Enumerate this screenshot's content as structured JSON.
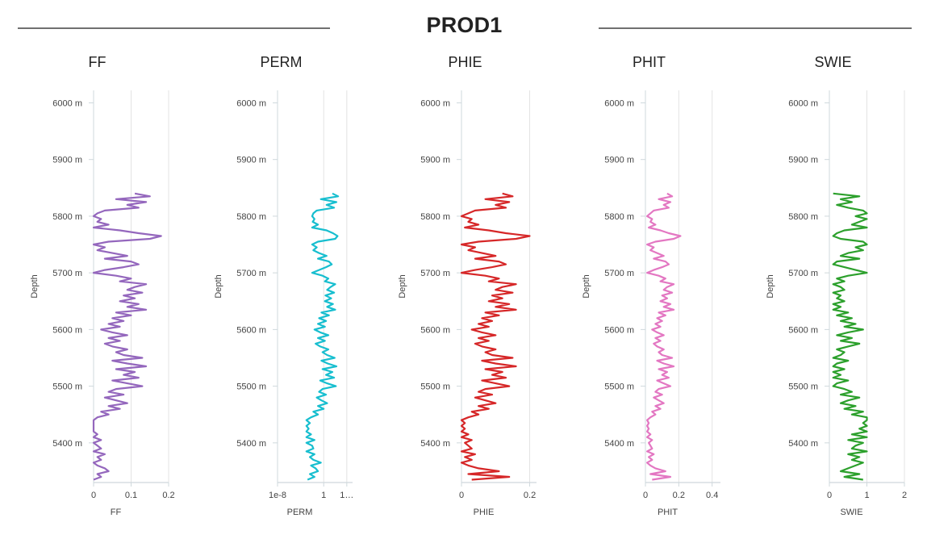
{
  "page_title": "PROD1",
  "chart_data": {
    "type": "line",
    "orientation": "vertical-depth-log",
    "title": "PROD1",
    "depth_axis": {
      "label": "Depth",
      "unit": "m",
      "range": [
        5330,
        6022
      ],
      "ticks": [
        6000,
        5900,
        5800,
        5700,
        5600,
        5500,
        5400
      ],
      "tick_labels": [
        "6000 m",
        "5900 m",
        "5800 m",
        "5700 m",
        "5600 m",
        "5500 m",
        "5400 m"
      ]
    },
    "depth_samples": [
      5840,
      5835,
      5830,
      5825,
      5820,
      5815,
      5810,
      5805,
      5800,
      5795,
      5790,
      5785,
      5780,
      5775,
      5770,
      5765,
      5760,
      5755,
      5750,
      5745,
      5740,
      5735,
      5730,
      5725,
      5720,
      5715,
      5710,
      5705,
      5700,
      5695,
      5690,
      5685,
      5680,
      5675,
      5670,
      5665,
      5660,
      5655,
      5650,
      5645,
      5640,
      5635,
      5630,
      5625,
      5620,
      5615,
      5610,
      5605,
      5600,
      5595,
      5590,
      5585,
      5580,
      5575,
      5570,
      5565,
      5560,
      5555,
      5550,
      5545,
      5540,
      5535,
      5530,
      5525,
      5520,
      5515,
      5510,
      5505,
      5500,
      5495,
      5490,
      5485,
      5480,
      5475,
      5470,
      5465,
      5460,
      5455,
      5450,
      5445,
      5440,
      5435,
      5430,
      5425,
      5420,
      5415,
      5410,
      5405,
      5400,
      5395,
      5390,
      5385,
      5380,
      5375,
      5370,
      5365,
      5360,
      5355,
      5350,
      5345,
      5340,
      5335
    ],
    "series": [
      {
        "name": "FF",
        "color": "#9467bd",
        "scale": "linear",
        "xlim": [
          0,
          0.2
        ],
        "ticks": [
          0,
          0.1,
          0.2
        ],
        "tick_labels": [
          "0",
          "0.1",
          "0.2"
        ],
        "xlabel": "FF",
        "values": [
          0.11,
          0.15,
          0.06,
          0.14,
          0.09,
          0.12,
          0.03,
          0.01,
          0.0,
          0.02,
          0.01,
          0.04,
          0.0,
          0.07,
          0.12,
          0.18,
          0.15,
          0.04,
          0.0,
          0.03,
          0.01,
          0.05,
          0.09,
          0.03,
          0.1,
          0.12,
          0.08,
          0.03,
          0.0,
          0.06,
          0.1,
          0.07,
          0.14,
          0.11,
          0.09,
          0.13,
          0.08,
          0.11,
          0.07,
          0.12,
          0.09,
          0.14,
          0.06,
          0.1,
          0.05,
          0.08,
          0.04,
          0.07,
          0.02,
          0.05,
          0.09,
          0.04,
          0.07,
          0.03,
          0.05,
          0.09,
          0.06,
          0.08,
          0.13,
          0.05,
          0.09,
          0.14,
          0.06,
          0.11,
          0.08,
          0.12,
          0.05,
          0.09,
          0.13,
          0.06,
          0.04,
          0.08,
          0.03,
          0.06,
          0.09,
          0.04,
          0.07,
          0.02,
          0.04,
          0.01,
          0.0,
          0.0,
          0.0,
          0.0,
          0.0,
          0.01,
          0.0,
          0.02,
          0.0,
          0.01,
          0.02,
          0.0,
          0.03,
          0.01,
          0.02,
          0.0,
          0.01,
          0.03,
          0.04,
          0.01,
          0.02,
          0.0
        ]
      },
      {
        "name": "PERM",
        "color": "#17becf",
        "scale": "log",
        "xlim": [
          -8,
          5
        ],
        "ticks": [
          -8,
          0,
          4
        ],
        "tick_labels": [
          "1e-8",
          "1",
          "1…"
        ],
        "xlabel": "PERM",
        "values": [
          1.5,
          2.5,
          -0.5,
          2.2,
          0.5,
          1.8,
          -1.2,
          -1.8,
          -2.0,
          -1.6,
          -1.9,
          -1.0,
          -2.0,
          0.5,
          1.6,
          2.4,
          2.0,
          -1.0,
          -2.0,
          -1.2,
          -1.8,
          -0.8,
          0.5,
          -1.0,
          0.9,
          1.4,
          0.4,
          -0.8,
          -2.0,
          -0.2,
          0.8,
          0.2,
          2.0,
          1.2,
          0.6,
          1.8,
          0.3,
          1.3,
          0.2,
          1.6,
          0.6,
          2.0,
          -0.4,
          0.9,
          -0.8,
          0.4,
          -1.0,
          0.2,
          -1.6,
          -0.6,
          0.8,
          -1.0,
          0.2,
          -1.4,
          -0.6,
          0.8,
          -0.2,
          0.6,
          1.9,
          -0.4,
          0.7,
          2.2,
          -0.2,
          1.5,
          0.4,
          1.8,
          -0.6,
          0.6,
          2.1,
          -0.2,
          -0.8,
          0.4,
          -1.2,
          -0.4,
          0.6,
          -1.0,
          0.0,
          -1.8,
          -1.0,
          -2.2,
          -3.0,
          -2.4,
          -3.0,
          -2.6,
          -3.0,
          -2.2,
          -3.0,
          -1.6,
          -3.0,
          -2.0,
          -1.8,
          -3.0,
          -1.6,
          -2.4,
          -1.8,
          -0.5,
          -2.2,
          -1.4,
          -1.0,
          -2.4,
          -1.6,
          -2.8
        ]
      },
      {
        "name": "PHIE",
        "color": "#d62728",
        "scale": "linear",
        "xlim": [
          0,
          0.22
        ],
        "ticks": [
          0,
          0.2
        ],
        "tick_labels": [
          "0",
          "0.2"
        ],
        "xlabel": "PHIE",
        "values": [
          0.12,
          0.15,
          0.07,
          0.14,
          0.1,
          0.13,
          0.04,
          0.02,
          0.0,
          0.03,
          0.02,
          0.05,
          0.01,
          0.08,
          0.13,
          0.2,
          0.16,
          0.05,
          0.0,
          0.04,
          0.02,
          0.06,
          0.1,
          0.04,
          0.11,
          0.13,
          0.09,
          0.04,
          0.0,
          0.07,
          0.11,
          0.08,
          0.16,
          0.12,
          0.1,
          0.15,
          0.09,
          0.12,
          0.08,
          0.14,
          0.1,
          0.16,
          0.07,
          0.11,
          0.06,
          0.09,
          0.05,
          0.08,
          0.03,
          0.06,
          0.1,
          0.05,
          0.08,
          0.04,
          0.06,
          0.1,
          0.07,
          0.09,
          0.15,
          0.06,
          0.1,
          0.16,
          0.07,
          0.12,
          0.09,
          0.13,
          0.06,
          0.1,
          0.14,
          0.07,
          0.05,
          0.09,
          0.04,
          0.07,
          0.1,
          0.05,
          0.08,
          0.03,
          0.05,
          0.02,
          0.0,
          0.01,
          0.0,
          0.01,
          0.0,
          0.02,
          0.0,
          0.03,
          0.01,
          0.02,
          0.03,
          0.0,
          0.04,
          0.01,
          0.03,
          0.0,
          0.02,
          0.05,
          0.11,
          0.02,
          0.14,
          0.03
        ]
      },
      {
        "name": "PHIT",
        "color": "#e377c2",
        "scale": "linear",
        "xlim": [
          0,
          0.45
        ],
        "ticks": [
          0,
          0.2,
          0.4
        ],
        "tick_labels": [
          "0",
          "0.2",
          "0.4"
        ],
        "xlabel": "PHIT",
        "values": [
          0.13,
          0.16,
          0.08,
          0.15,
          0.11,
          0.14,
          0.05,
          0.03,
          0.01,
          0.04,
          0.03,
          0.06,
          0.02,
          0.09,
          0.14,
          0.21,
          0.17,
          0.06,
          0.01,
          0.05,
          0.03,
          0.07,
          0.11,
          0.05,
          0.12,
          0.14,
          0.1,
          0.05,
          0.01,
          0.08,
          0.12,
          0.09,
          0.17,
          0.13,
          0.11,
          0.16,
          0.1,
          0.13,
          0.09,
          0.15,
          0.11,
          0.17,
          0.08,
          0.12,
          0.07,
          0.1,
          0.06,
          0.09,
          0.04,
          0.07,
          0.11,
          0.06,
          0.09,
          0.05,
          0.07,
          0.11,
          0.08,
          0.1,
          0.16,
          0.07,
          0.11,
          0.17,
          0.08,
          0.13,
          0.1,
          0.14,
          0.07,
          0.11,
          0.15,
          0.08,
          0.06,
          0.1,
          0.05,
          0.08,
          0.11,
          0.06,
          0.09,
          0.04,
          0.06,
          0.03,
          0.01,
          0.02,
          0.01,
          0.02,
          0.01,
          0.03,
          0.01,
          0.04,
          0.02,
          0.03,
          0.04,
          0.01,
          0.05,
          0.02,
          0.04,
          0.01,
          0.03,
          0.06,
          0.12,
          0.03,
          0.15,
          0.04
        ]
      },
      {
        "name": "SWIE",
        "color": "#2ca02c",
        "scale": "linear",
        "xlim": [
          0,
          2
        ],
        "ticks": [
          0,
          1,
          2
        ],
        "tick_labels": [
          "0",
          "1",
          "2"
        ],
        "xlabel": "SWIE",
        "values": [
          0.1,
          0.8,
          0.3,
          0.6,
          0.2,
          0.5,
          0.9,
          1.0,
          0.7,
          1.0,
          0.8,
          0.6,
          1.0,
          0.4,
          0.2,
          0.1,
          0.3,
          0.9,
          1.0,
          0.7,
          0.9,
          0.5,
          0.3,
          0.8,
          0.2,
          0.1,
          0.4,
          0.7,
          1.0,
          0.5,
          0.2,
          0.4,
          0.1,
          0.3,
          0.4,
          0.1,
          0.3,
          0.2,
          0.4,
          0.1,
          0.3,
          0.1,
          0.5,
          0.2,
          0.6,
          0.3,
          0.7,
          0.4,
          0.9,
          0.5,
          0.2,
          0.6,
          0.3,
          0.8,
          0.5,
          0.2,
          0.4,
          0.3,
          0.1,
          0.5,
          0.2,
          0.1,
          0.4,
          0.1,
          0.3,
          0.1,
          0.5,
          0.2,
          0.1,
          0.4,
          0.6,
          0.3,
          0.8,
          0.5,
          0.3,
          0.7,
          0.4,
          0.9,
          0.6,
          1.0,
          1.0,
          0.9,
          1.0,
          0.8,
          1.0,
          0.6,
          1.0,
          0.5,
          0.9,
          0.7,
          0.6,
          1.0,
          0.5,
          0.8,
          0.6,
          0.9,
          0.7,
          0.5,
          0.3,
          0.8,
          0.4,
          0.9
        ]
      }
    ]
  }
}
